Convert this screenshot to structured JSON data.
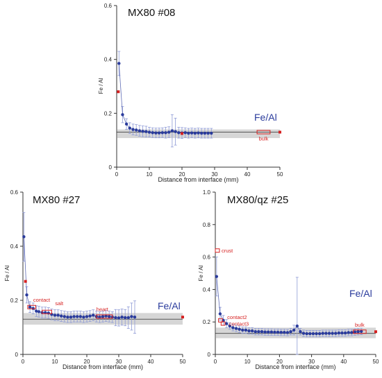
{
  "colors": {
    "series": "#2a3b9c",
    "errorbar": "#8e9ad6",
    "band": "#d6d6d6",
    "red": "#d62020",
    "axis": "#333333"
  },
  "chart_data": [
    {
      "type": "scatter",
      "title": "MX80 #08",
      "xlabel": "Distance from interface (mm)",
      "ylabel": "Fe / Al",
      "xlim": [
        0,
        50
      ],
      "ylim": [
        0,
        0.6
      ],
      "xticks": [
        0,
        10,
        20,
        30,
        40,
        50
      ],
      "yticks": [
        0,
        0.2,
        0.4,
        0.6
      ],
      "reference_label": "Fe/Al",
      "reference_line": 0.13,
      "reference_band": [
        0.108,
        0.14
      ],
      "series": [
        {
          "x": [
            0.7,
            1.8,
            3,
            4,
            5,
            6,
            7,
            8,
            9,
            10,
            11,
            12,
            13,
            14,
            15,
            16,
            17,
            18,
            19,
            20,
            21,
            22,
            23,
            24,
            25,
            26,
            27,
            28,
            29
          ],
          "y": [
            0.385,
            0.195,
            0.16,
            0.145,
            0.14,
            0.138,
            0.135,
            0.133,
            0.132,
            0.13,
            0.128,
            0.127,
            0.127,
            0.128,
            0.128,
            0.13,
            0.135,
            0.132,
            0.128,
            0.127,
            0.128,
            0.126,
            0.127,
            0.126,
            0.127,
            0.126,
            0.126,
            0.126,
            0.126
          ],
          "err": [
            0.045,
            0.03,
            0.02,
            0.02,
            0.02,
            0.02,
            0.02,
            0.02,
            0.02,
            0.018,
            0.018,
            0.018,
            0.018,
            0.018,
            0.02,
            0.02,
            0.06,
            0.05,
            0.02,
            0.02,
            0.018,
            0.018,
            0.018,
            0.018,
            0.018,
            0.018,
            0.018,
            0.018,
            0.018
          ]
        }
      ],
      "markers": [
        {
          "x": 0.5,
          "y": 0.28,
          "label": ""
        },
        {
          "x": 20,
          "y": 0.125,
          "label": ""
        },
        {
          "x": 50,
          "y": 0.13,
          "label": ""
        }
      ],
      "boxes": [
        {
          "x0": 43,
          "x1": 47,
          "y": 0.13,
          "label": "bulk"
        }
      ]
    },
    {
      "type": "scatter",
      "title": "MX80 #27",
      "xlabel": "Distance from interface (mm)",
      "ylabel": "Fe / Al",
      "xlim": [
        0,
        50
      ],
      "ylim": [
        0,
        0.6
      ],
      "xticks": [
        0,
        10,
        20,
        30,
        40,
        50
      ],
      "yticks": [
        0,
        0.2,
        0.4,
        0.6
      ],
      "reference_label": "Fe/Al",
      "reference_line": 0.13,
      "reference_band": [
        0.11,
        0.153
      ],
      "series": [
        {
          "x": [
            0.3,
            1.2,
            2.2,
            3.2,
            4.2,
            5,
            6,
            7,
            8,
            9,
            10,
            11,
            12,
            13,
            14,
            15,
            16,
            17,
            18,
            19,
            20,
            21,
            22,
            23,
            24,
            25,
            26,
            27,
            28,
            29,
            30,
            31,
            32,
            33,
            34,
            35
          ],
          "y": [
            0.435,
            0.22,
            0.175,
            0.17,
            0.16,
            0.158,
            0.155,
            0.155,
            0.153,
            0.148,
            0.145,
            0.145,
            0.142,
            0.14,
            0.138,
            0.138,
            0.14,
            0.14,
            0.14,
            0.138,
            0.14,
            0.142,
            0.145,
            0.14,
            0.138,
            0.14,
            0.142,
            0.14,
            0.138,
            0.136,
            0.135,
            0.138,
            0.136,
            0.136,
            0.14,
            0.138
          ],
          "err": [
            0.09,
            0.03,
            0.02,
            0.02,
            0.02,
            0.02,
            0.02,
            0.02,
            0.02,
            0.02,
            0.02,
            0.02,
            0.02,
            0.02,
            0.02,
            0.02,
            0.02,
            0.02,
            0.02,
            0.02,
            0.02,
            0.02,
            0.02,
            0.02,
            0.02,
            0.02,
            0.02,
            0.02,
            0.02,
            0.03,
            0.03,
            0.03,
            0.03,
            0.04,
            0.05,
            0.06
          ]
        }
      ],
      "markers": [
        {
          "x": 0.8,
          "y": 0.27,
          "label": ""
        },
        {
          "x": 50,
          "y": 0.138,
          "label": ""
        }
      ],
      "boxes": [
        {
          "x0": 1.5,
          "x1": 4,
          "y": 0.175,
          "label": "contact"
        },
        {
          "x0": 6,
          "x1": 9,
          "y": 0.157,
          "label": "salt"
        },
        {
          "x0": 23,
          "x1": 28,
          "y": 0.14,
          "label": "heart"
        }
      ]
    },
    {
      "type": "scatter",
      "title": "MX80/qz #25",
      "xlabel": "Distance from interface (mm)",
      "ylabel": "Fe / Al",
      "xlim": [
        0,
        50
      ],
      "ylim": [
        0,
        1.0
      ],
      "xticks": [
        0,
        10,
        20,
        30,
        40,
        50
      ],
      "yticks": [
        0,
        0.2,
        0.4,
        0.6,
        0.8,
        1.0
      ],
      "reference_label": "Fe/Al",
      "reference_line": 0.13,
      "reference_band": [
        0.1,
        0.165
      ],
      "series": [
        {
          "x": [
            0.4,
            1.5,
            2.5,
            3.5,
            4.5,
            5.5,
            6.5,
            7.5,
            8.5,
            9.5,
            10.5,
            11.5,
            12.5,
            13.5,
            14.5,
            15.5,
            16.5,
            17.5,
            18.5,
            19.5,
            20.5,
            21.5,
            22.5,
            23.5,
            24.5,
            25.5,
            26.5,
            27.5,
            28.5,
            29.5,
            30.5,
            31.5,
            32.5,
            33.5,
            34.5,
            35.5,
            36.5,
            37.5,
            38.5,
            39.5,
            40.5,
            41.5,
            42.5,
            43.5,
            44.5,
            45.5
          ],
          "y": [
            0.48,
            0.25,
            0.21,
            0.19,
            0.175,
            0.165,
            0.16,
            0.155,
            0.15,
            0.15,
            0.145,
            0.145,
            0.14,
            0.14,
            0.14,
            0.138,
            0.138,
            0.138,
            0.137,
            0.137,
            0.136,
            0.136,
            0.135,
            0.14,
            0.15,
            0.175,
            0.14,
            0.13,
            0.128,
            0.128,
            0.128,
            0.128,
            0.128,
            0.13,
            0.13,
            0.13,
            0.13,
            0.13,
            0.132,
            0.132,
            0.132,
            0.135,
            0.135,
            0.138,
            0.14,
            0.142
          ],
          "err": [
            0.12,
            0.04,
            0.03,
            0.025,
            0.02,
            0.02,
            0.02,
            0.02,
            0.02,
            0.02,
            0.02,
            0.02,
            0.02,
            0.02,
            0.02,
            0.02,
            0.02,
            0.02,
            0.02,
            0.02,
            0.02,
            0.02,
            0.02,
            0.02,
            0.03,
            0.3,
            0.02,
            0.02,
            0.02,
            0.02,
            0.02,
            0.02,
            0.02,
            0.02,
            0.02,
            0.02,
            0.02,
            0.02,
            0.02,
            0.02,
            0.02,
            0.02,
            0.02,
            0.02,
            0.02,
            0.02
          ]
        }
      ],
      "markers": [
        {
          "x": 50,
          "y": 0.14,
          "label": ""
        }
      ],
      "boxes": [
        {
          "x0": 0,
          "x1": 1.3,
          "y": 0.64,
          "label": "crust"
        },
        {
          "x0": 1.0,
          "x1": 2.2,
          "y": 0.21,
          "label": "contact2"
        },
        {
          "x0": 1.8,
          "x1": 3.0,
          "y": 0.19,
          "label": "contact3"
        },
        {
          "x0": 43,
          "x1": 47,
          "y": 0.14,
          "label": "bulk"
        }
      ]
    }
  ]
}
